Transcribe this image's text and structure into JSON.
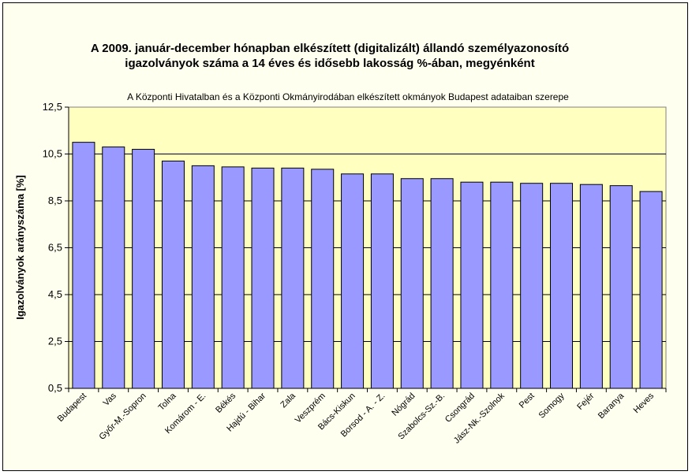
{
  "chart_data": {
    "type": "bar",
    "title_lines": [
      "A 2009. január-december hónapban elkészített (digitalizált) állandó személyazonosító",
      "igazolványok száma a 14 éves és idősebb lakosság %-ában, megyénként"
    ],
    "subtitle": "A  Központi Hivatalban és a Központi Okmányirodában elkészített okmányok Budapest adataiban szerepe",
    "ylabel": "Igazolványok arányszáma [%]",
    "xlabel": "",
    "ylim": [
      0.5,
      12.5
    ],
    "yticks": [
      "0,5",
      "2,5",
      "4,5",
      "6,5",
      "8,5",
      "10,5",
      "12,5"
    ],
    "grid": "horizontal",
    "legend": "none",
    "bar_color": "#9999ff",
    "categories": [
      "Budapest",
      "Vas",
      "Győr-M.-Sopron",
      "Tolna",
      "Komárom - E.",
      "Békés",
      "Hajdú - Bihar",
      "Zala",
      "Veszprém",
      "Bács-Kiskun",
      "Borsod - A. - Z.",
      "Nógrád",
      "Szabolcs-Sz.-B.",
      "Csongrád",
      "Jász-Nk.-Szolnok",
      "Pest",
      "Somogy",
      "Fejér",
      "Baranya",
      "Heves"
    ],
    "values": [
      11.0,
      10.8,
      10.7,
      10.2,
      10.0,
      9.95,
      9.9,
      9.9,
      9.85,
      9.65,
      9.65,
      9.45,
      9.45,
      9.3,
      9.3,
      9.25,
      9.25,
      9.2,
      9.15,
      8.9
    ]
  }
}
